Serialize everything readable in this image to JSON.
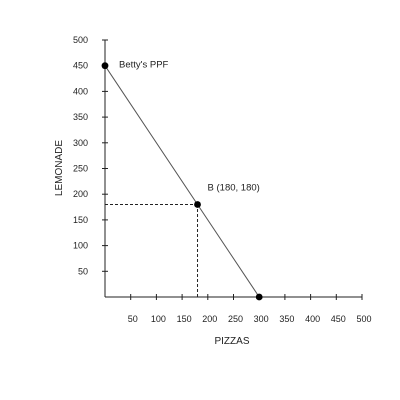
{
  "chart_data": {
    "type": "line",
    "title": "",
    "xlabel": "PIZZAS",
    "ylabel": "LEMONADE",
    "xlim": [
      0,
      500
    ],
    "ylim": [
      0,
      500
    ],
    "x_ticks": [
      50,
      100,
      150,
      200,
      250,
      300,
      350,
      400,
      450,
      500
    ],
    "y_ticks": [
      50,
      100,
      150,
      200,
      250,
      300,
      350,
      400,
      450,
      500
    ],
    "grid": false,
    "series": [
      {
        "name": "Betty's PPF",
        "x": [
          0,
          300
        ],
        "y": [
          450,
          0
        ]
      }
    ],
    "points": [
      {
        "x": 0,
        "y": 450
      },
      {
        "x": 180,
        "y": 180,
        "label": "B (180, 180)"
      },
      {
        "x": 300,
        "y": 0
      }
    ],
    "annotations": [
      {
        "text": "Betty's PPF",
        "x": 0,
        "y": 450
      },
      {
        "text": "B (180, 180)",
        "x": 180,
        "y": 180
      }
    ],
    "guide_lines": [
      {
        "from": [
          0,
          180
        ],
        "to": [
          180,
          180
        ],
        "style": "dashed"
      },
      {
        "from": [
          180,
          0
        ],
        "to": [
          180,
          180
        ],
        "style": "dashed"
      }
    ]
  }
}
